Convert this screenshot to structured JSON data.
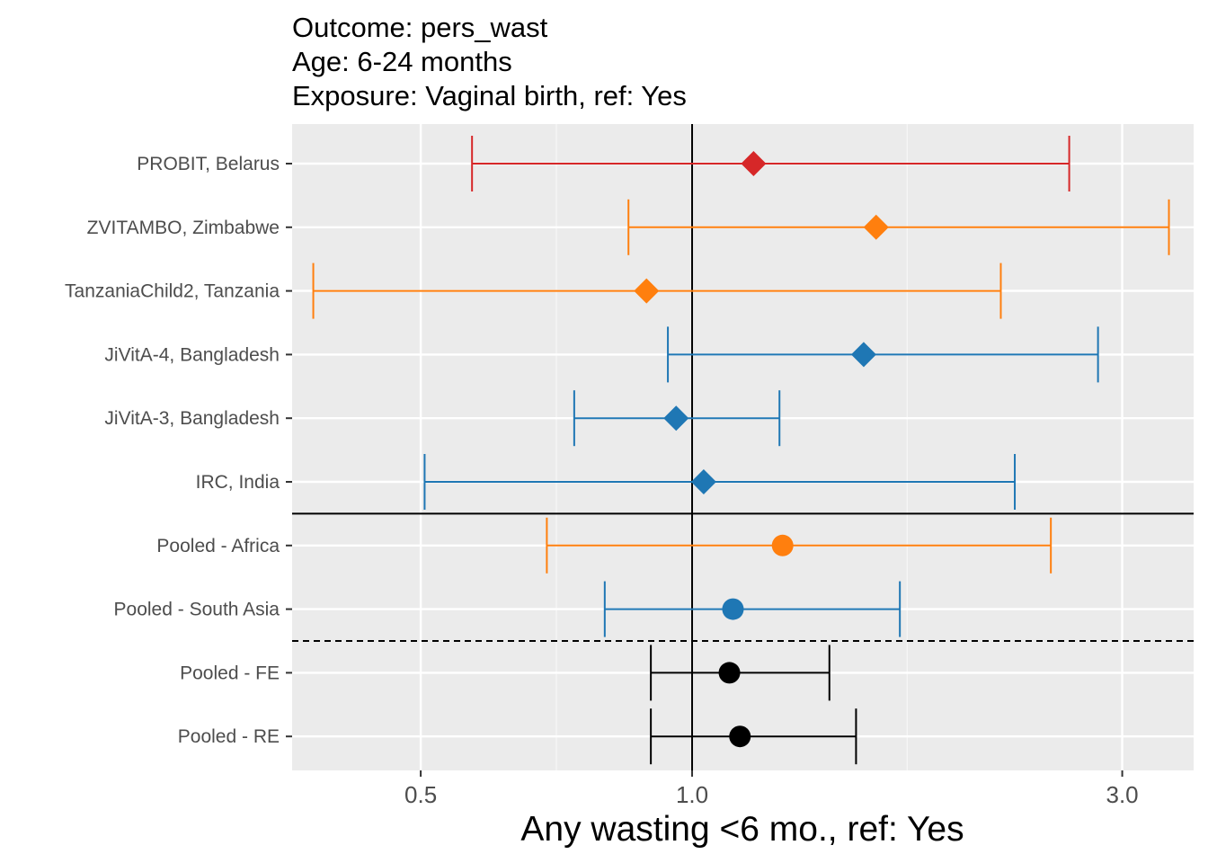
{
  "chart_data": {
    "type": "forest",
    "title_lines": [
      "Outcome: pers_wast",
      "Age: 6-24 months",
      "Exposure: Vaginal birth, ref: Yes"
    ],
    "xlabel": "Any wasting  <6 mo., ref: Yes",
    "x_scale": "log",
    "xlim": [
      0.36,
      3.6
    ],
    "x_ticks": [
      0.5,
      1.0,
      3.0
    ],
    "x_tick_labels": [
      "0.5",
      "1.0",
      "3.0"
    ],
    "x_minor_gridlines": [
      0.707,
      1.732
    ],
    "reference_line_x": 1.0,
    "grid": true,
    "rows": [
      {
        "label": "PROBIT, Belarus",
        "estimate": 1.17,
        "lower": 0.57,
        "upper": 2.62,
        "color": "#d62728",
        "shape": "diamond"
      },
      {
        "label": "ZVITAMBO, Zimbabwe",
        "estimate": 1.6,
        "lower": 0.85,
        "upper": 3.38,
        "color": "#ff7f0e",
        "shape": "diamond"
      },
      {
        "label": "TanzaniaChild2, Tanzania",
        "estimate": 0.89,
        "lower": 0.38,
        "upper": 2.2,
        "color": "#ff7f0e",
        "shape": "diamond"
      },
      {
        "label": "JiVitA-4, Bangladesh",
        "estimate": 1.55,
        "lower": 0.94,
        "upper": 2.82,
        "color": "#1f77b4",
        "shape": "diamond"
      },
      {
        "label": "JiVitA-3, Bangladesh",
        "estimate": 0.96,
        "lower": 0.74,
        "upper": 1.25,
        "color": "#1f77b4",
        "shape": "diamond"
      },
      {
        "label": "IRC, India",
        "estimate": 1.03,
        "lower": 0.505,
        "upper": 2.28,
        "color": "#1f77b4",
        "shape": "diamond"
      },
      {
        "label": "Pooled - Africa",
        "estimate": 1.26,
        "lower": 0.69,
        "upper": 2.5,
        "color": "#ff7f0e",
        "shape": "circle"
      },
      {
        "label": "Pooled - South Asia",
        "estimate": 1.11,
        "lower": 0.8,
        "upper": 1.7,
        "color": "#1f77b4",
        "shape": "circle"
      },
      {
        "label": "Pooled - FE",
        "estimate": 1.1,
        "lower": 0.9,
        "upper": 1.42,
        "color": "#000000",
        "shape": "circle"
      },
      {
        "label": "Pooled - RE",
        "estimate": 1.13,
        "lower": 0.9,
        "upper": 1.52,
        "color": "#000000",
        "shape": "circle"
      }
    ],
    "separators": [
      {
        "after_row": 6,
        "style": "solid"
      },
      {
        "after_row": 8,
        "style": "dashed"
      }
    ]
  }
}
